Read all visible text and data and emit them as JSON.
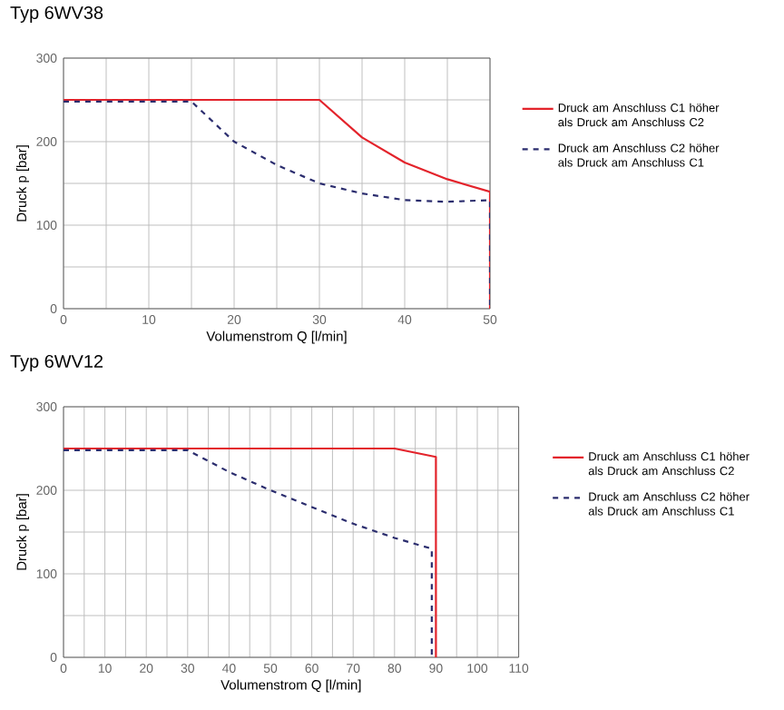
{
  "chart_data": [
    {
      "type": "line",
      "title": "Typ 6WV38",
      "xlabel": "Volumenstrom Q [l/min]",
      "ylabel": "Druck p [bar]",
      "xlim": [
        0,
        50
      ],
      "xticks": [
        0,
        10,
        20,
        30,
        40,
        50
      ],
      "ylim": [
        0,
        300
      ],
      "yticks": [
        0,
        100,
        200,
        300
      ],
      "grid": true,
      "legend": "right",
      "marker": "none",
      "series": [
        {
          "name": "Druck am Anschluss C1 höher als Druck am Anschluss C2",
          "color": "#e3232b",
          "line_style": "solid",
          "x": [
            0,
            30,
            35,
            40,
            45,
            50,
            50
          ],
          "values": [
            250,
            250,
            205,
            175,
            155,
            140,
            0
          ]
        },
        {
          "name": "Druck am Anschluss C2 höher als Druck am Anschluss C1",
          "color": "#2b2d6e",
          "line_style": "dashed",
          "x": [
            0,
            15,
            20,
            25,
            30,
            35,
            40,
            45,
            50,
            50
          ],
          "values": [
            248,
            248,
            200,
            172,
            150,
            138,
            130,
            128,
            130,
            0
          ]
        }
      ]
    },
    {
      "type": "line",
      "title": "Typ 6WV12",
      "xlabel": "Volumenstrom Q [l/min]",
      "ylabel": "Druck p [bar]",
      "xlim": [
        0,
        110
      ],
      "xticks": [
        0,
        10,
        20,
        30,
        40,
        50,
        60,
        70,
        80,
        90,
        100,
        110
      ],
      "ylim": [
        0,
        300
      ],
      "yticks": [
        0,
        100,
        200,
        300
      ],
      "grid": true,
      "legend": "right",
      "marker": "none",
      "series": [
        {
          "name": "Druck am Anschluss C1 höher als Druck am Anschluss C2",
          "color": "#e3232b",
          "line_style": "solid",
          "x": [
            0,
            80,
            90,
            90
          ],
          "values": [
            250,
            250,
            240,
            0
          ]
        },
        {
          "name": "Druck am Anschluss C2 höher als Druck am Anschluss C1",
          "color": "#2b2d6e",
          "line_style": "dashed",
          "x": [
            0,
            30,
            40,
            50,
            60,
            70,
            80,
            89,
            89
          ],
          "values": [
            248,
            248,
            222,
            200,
            180,
            160,
            143,
            130,
            0
          ]
        }
      ]
    }
  ]
}
